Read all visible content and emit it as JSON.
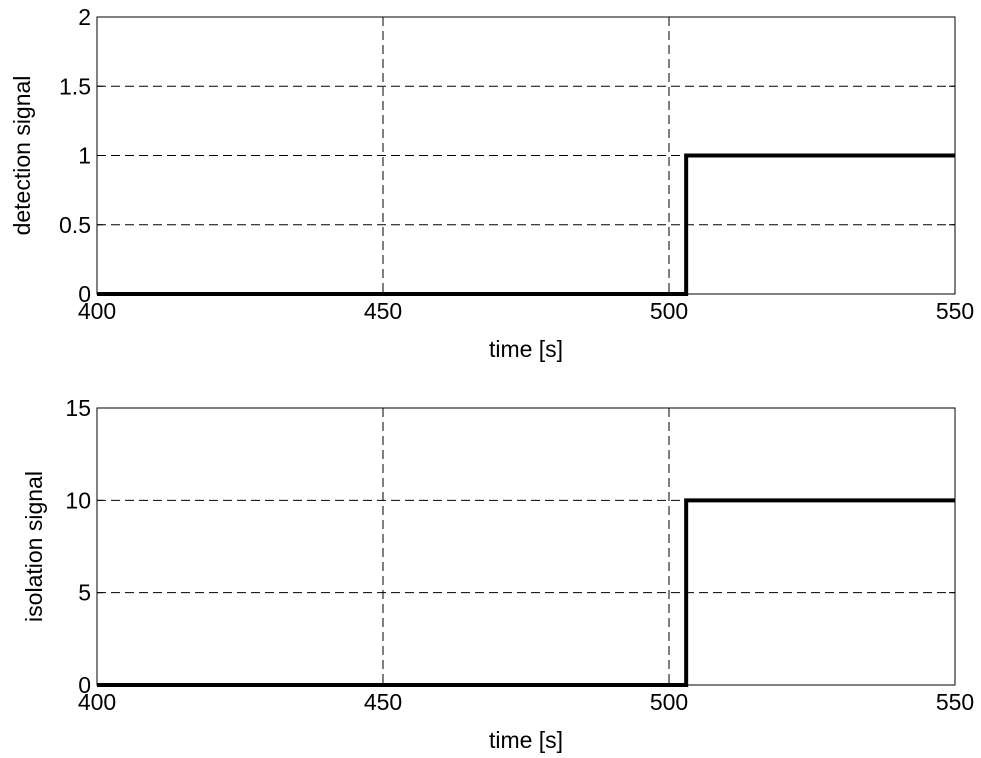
{
  "chart_data": [
    {
      "type": "line",
      "title": "",
      "xlabel": "time [s]",
      "ylabel": "detection signal",
      "xlim": [
        400,
        550
      ],
      "ylim": [
        0,
        2
      ],
      "x_ticks": [
        400,
        450,
        500,
        550
      ],
      "y_ticks": [
        0,
        0.5,
        1,
        1.5,
        2
      ],
      "x_tick_labels": [
        "400",
        "450",
        "500",
        "550"
      ],
      "y_tick_labels": [
        "0",
        "0.5",
        "1",
        "1.5",
        "2"
      ],
      "grid": true,
      "line_color": "#000000",
      "series": [
        {
          "x": [
            400,
            503,
            503,
            550
          ],
          "y": [
            0,
            0,
            1,
            1
          ]
        }
      ]
    },
    {
      "type": "line",
      "title": "",
      "xlabel": "time [s]",
      "ylabel": "isolation signal",
      "xlim": [
        400,
        550
      ],
      "ylim": [
        0,
        15
      ],
      "x_ticks": [
        400,
        450,
        500,
        550
      ],
      "y_ticks": [
        0,
        5,
        10,
        15
      ],
      "x_tick_labels": [
        "400",
        "450",
        "500",
        "550"
      ],
      "y_tick_labels": [
        "0",
        "5",
        "10",
        "15"
      ],
      "grid": true,
      "line_color": "#000000",
      "series": [
        {
          "x": [
            400,
            503,
            503,
            550
          ],
          "y": [
            0,
            0,
            10,
            10
          ]
        }
      ]
    }
  ]
}
